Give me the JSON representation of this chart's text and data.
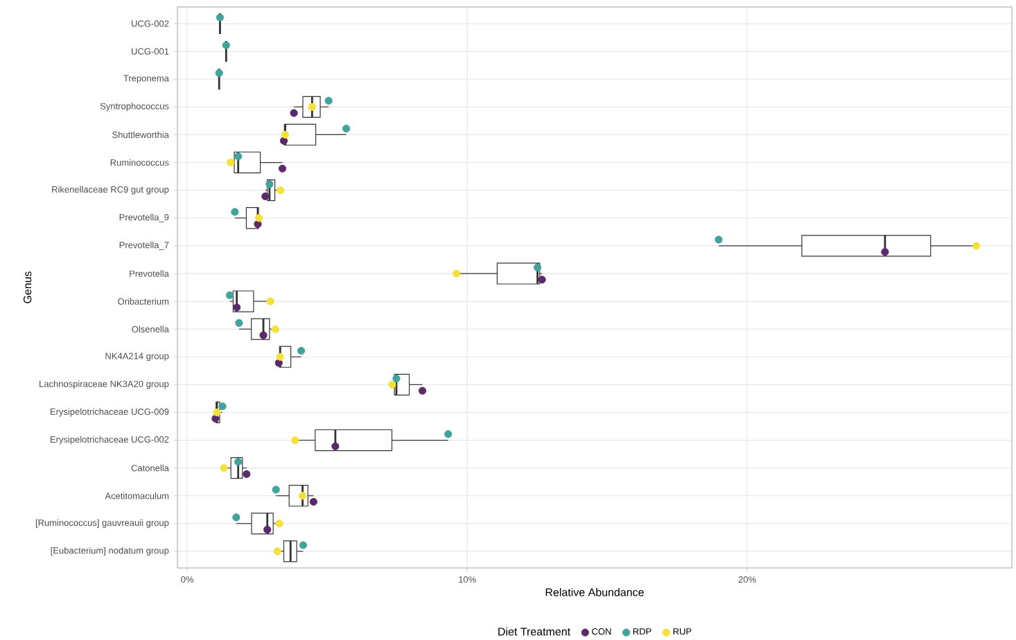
{
  "chart_data": {
    "type": "box",
    "color": "#333333",
    "orientation": "horizontal",
    "xlabel": "Relative Abundance",
    "ylabel": "Genus",
    "legend_title": "Diet Treatment",
    "legend": "bottom",
    "grid": true,
    "xlim": [
      -0.35,
      29.45
    ],
    "xticks": [
      {
        "value": 0,
        "label": "0%"
      },
      {
        "value": 10,
        "label": "10%"
      },
      {
        "value": 20,
        "label": "20%"
      }
    ],
    "categories": [
      "UCG-002",
      "UCG-001",
      "Treponema",
      "Syntrophococcus",
      "Shuttleworthia",
      "Ruminococcus",
      "Rikenellaceae RC9 gut group",
      "Prevotella_9",
      "Prevotella_7",
      "Prevotella",
      "Oribacterium",
      "Olsenella",
      "NK4A214 group",
      "Lachnospiraceae NK3A20 group",
      "Erysipelotrichaceae UCG-009",
      "Erysipelotrichaceae UCG-002",
      "Catonella",
      "Acetitomaculum",
      "[Ruminococcus] gauvreauii group",
      "[Eubacterium] nodatum group"
    ],
    "boxes": [
      {
        "low": 1.17,
        "q1": 1.17,
        "median": 1.17,
        "q3": 1.17,
        "high": 1.17
      },
      {
        "low": 1.39,
        "q1": 1.39,
        "median": 1.39,
        "q3": 1.39,
        "high": 1.39
      },
      {
        "low": 1.14,
        "q1": 1.14,
        "median": 1.14,
        "q3": 1.14,
        "high": 1.14
      },
      {
        "low": 3.81,
        "q1": 4.13,
        "median": 4.46,
        "q3": 4.75,
        "high": 5.05
      },
      {
        "low": 3.45,
        "q1": 3.47,
        "median": 3.5,
        "q3": 4.59,
        "high": 5.68
      },
      {
        "low": 1.55,
        "q1": 1.68,
        "median": 1.82,
        "q3": 2.61,
        "high": 3.4
      },
      {
        "low": 2.79,
        "q1": 2.86,
        "median": 2.94,
        "q3": 3.13,
        "high": 3.33
      },
      {
        "low": 1.7,
        "q1": 2.11,
        "median": 2.52,
        "q3": 2.54,
        "high": 2.56
      },
      {
        "low": 18.98,
        "q1": 21.95,
        "median": 24.92,
        "q3": 26.55,
        "high": 28.18
      },
      {
        "low": 9.62,
        "q1": 11.07,
        "median": 12.51,
        "q3": 12.59,
        "high": 12.67
      },
      {
        "low": 1.52,
        "q1": 1.64,
        "median": 1.77,
        "q3": 2.37,
        "high": 2.97
      },
      {
        "low": 1.85,
        "q1": 2.29,
        "median": 2.72,
        "q3": 2.94,
        "high": 3.15
      },
      {
        "low": 3.27,
        "q1": 3.3,
        "median": 3.32,
        "q3": 3.7,
        "high": 4.07
      },
      {
        "low": 7.32,
        "q1": 7.4,
        "median": 7.47,
        "q3": 7.93,
        "high": 8.4
      },
      {
        "low": 1.01,
        "q1": 1.03,
        "median": 1.06,
        "q3": 1.16,
        "high": 1.26
      },
      {
        "low": 3.85,
        "q1": 4.57,
        "median": 5.29,
        "q3": 7.31,
        "high": 9.32
      },
      {
        "low": 1.31,
        "q1": 1.56,
        "median": 1.82,
        "q3": 1.97,
        "high": 2.12
      },
      {
        "low": 3.17,
        "q1": 3.64,
        "median": 4.12,
        "q3": 4.31,
        "high": 4.51
      },
      {
        "low": 1.75,
        "q1": 2.3,
        "median": 2.86,
        "q3": 3.07,
        "high": 3.29
      },
      {
        "low": 3.22,
        "q1": 3.45,
        "median": 3.69,
        "q3": 3.91,
        "high": 4.14
      }
    ],
    "series": [
      {
        "name": "CON",
        "type": "scatter",
        "color": "#5c2a6b",
        "x": [
          "UCG-002",
          "UCG-001",
          "Treponema",
          "Syntrophococcus",
          "Shuttleworthia",
          "Ruminococcus",
          "Rikenellaceae RC9 gut group",
          "Prevotella_9",
          "Prevotella_7",
          "Prevotella",
          "Oribacterium",
          "Olsenella",
          "NK4A214 group",
          "Lachnospiraceae NK3A20 group",
          "Erysipelotrichaceae UCG-009",
          "Erysipelotrichaceae UCG-002",
          "Catonella",
          "Acetitomaculum",
          "[Ruminococcus] gauvreauii group",
          "[Eubacterium] nodatum group"
        ],
        "values": [
          null,
          null,
          null,
          3.81,
          3.45,
          3.4,
          2.79,
          2.52,
          24.92,
          12.67,
          1.77,
          2.72,
          3.27,
          8.4,
          1.01,
          5.29,
          2.12,
          4.51,
          2.86,
          null
        ]
      },
      {
        "name": "RDP",
        "type": "scatter",
        "color": "#41a39c",
        "x": [
          "UCG-002",
          "UCG-001",
          "Treponema",
          "Syntrophococcus",
          "Shuttleworthia",
          "Ruminococcus",
          "Rikenellaceae RC9 gut group",
          "Prevotella_9",
          "Prevotella_7",
          "Prevotella",
          "Oribacterium",
          "Olsenella",
          "NK4A214 group",
          "Lachnospiraceae NK3A20 group",
          "Erysipelotrichaceae UCG-009",
          "Erysipelotrichaceae UCG-002",
          "Catonella",
          "Acetitomaculum",
          "[Ruminococcus] gauvreauii group",
          "[Eubacterium] nodatum group"
        ],
        "values": [
          1.17,
          1.39,
          1.14,
          5.05,
          5.68,
          1.82,
          2.94,
          1.7,
          18.98,
          12.51,
          1.52,
          1.85,
          4.07,
          7.47,
          1.26,
          9.32,
          1.82,
          3.17,
          1.75,
          4.14
        ]
      },
      {
        "name": "RUP",
        "type": "scatter",
        "color": "#f5e13a",
        "x": [
          "UCG-002",
          "UCG-001",
          "Treponema",
          "Syntrophococcus",
          "Shuttleworthia",
          "Ruminococcus",
          "Rikenellaceae RC9 gut group",
          "Prevotella_9",
          "Prevotella_7",
          "Prevotella",
          "Oribacterium",
          "Olsenella",
          "NK4A214 group",
          "Lachnospiraceae NK3A20 group",
          "Erysipelotrichaceae UCG-009",
          "Erysipelotrichaceae UCG-002",
          "Catonella",
          "Acetitomaculum",
          "[Ruminococcus] gauvreauii group",
          "[Eubacterium] nodatum group"
        ],
        "values": [
          null,
          null,
          null,
          4.46,
          3.5,
          1.55,
          3.33,
          2.56,
          28.18,
          9.62,
          2.97,
          3.15,
          3.32,
          7.32,
          1.06,
          3.85,
          1.31,
          4.12,
          3.29,
          3.22
        ]
      }
    ]
  }
}
